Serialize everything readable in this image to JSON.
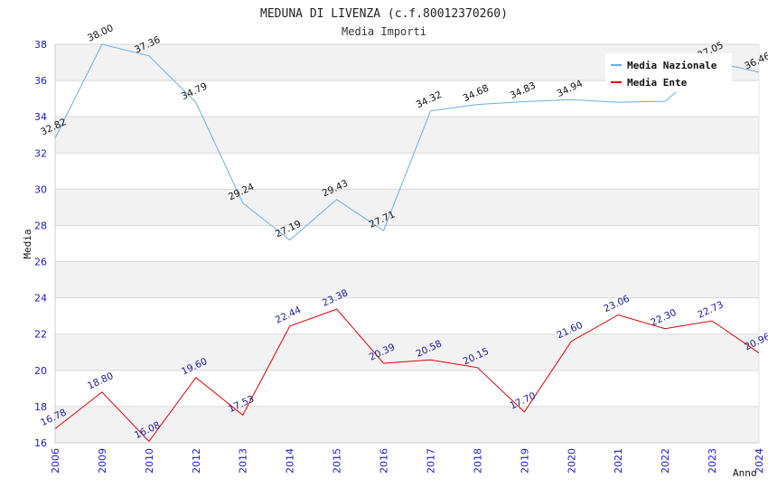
{
  "chart_data": {
    "type": "line",
    "title": "MEDUNA DI LIVENZA (c.f.80012370260)",
    "subtitle": "Media Importi",
    "xlabel": "Anno",
    "ylabel": "Media",
    "ylim": [
      16,
      38
    ],
    "yticks": [
      16,
      18,
      20,
      22,
      24,
      26,
      28,
      30,
      32,
      34,
      36,
      38
    ],
    "categories": [
      "2006",
      "2009",
      "2010",
      "2012",
      "2013",
      "2014",
      "2015",
      "2016",
      "2017",
      "2018",
      "2019",
      "2020",
      "2021",
      "2022",
      "2023",
      "2024"
    ],
    "series": [
      {
        "name": "Media Nazionale",
        "color": "#6aaee6",
        "values": [
          32.82,
          38.0,
          37.36,
          34.79,
          29.24,
          27.19,
          29.43,
          27.71,
          34.32,
          34.68,
          34.83,
          34.94,
          34.8,
          34.85,
          37.05,
          36.46
        ],
        "labels": [
          "32.82",
          "38.00",
          "37.36",
          "34.79",
          "29.24",
          "27.19",
          "29.43",
          "27.71",
          "34.32",
          "34.68",
          "34.83",
          "34.94",
          "",
          "",
          "37.05",
          "36.46"
        ]
      },
      {
        "name": "Media Ente",
        "color": "#dd0000",
        "values": [
          16.78,
          18.8,
          16.08,
          19.6,
          17.53,
          22.44,
          23.38,
          20.39,
          20.58,
          20.15,
          17.7,
          21.6,
          23.06,
          22.3,
          22.73,
          20.96
        ],
        "labels": [
          "16.78",
          "18.80",
          "16.08",
          "19.60",
          "17.53",
          "22.44",
          "23.38",
          "20.39",
          "20.58",
          "20.15",
          "17.70",
          "21.60",
          "23.06",
          "22.30",
          "22.73",
          "20.96"
        ]
      }
    ],
    "grid": true,
    "legend_position": "top-right"
  }
}
